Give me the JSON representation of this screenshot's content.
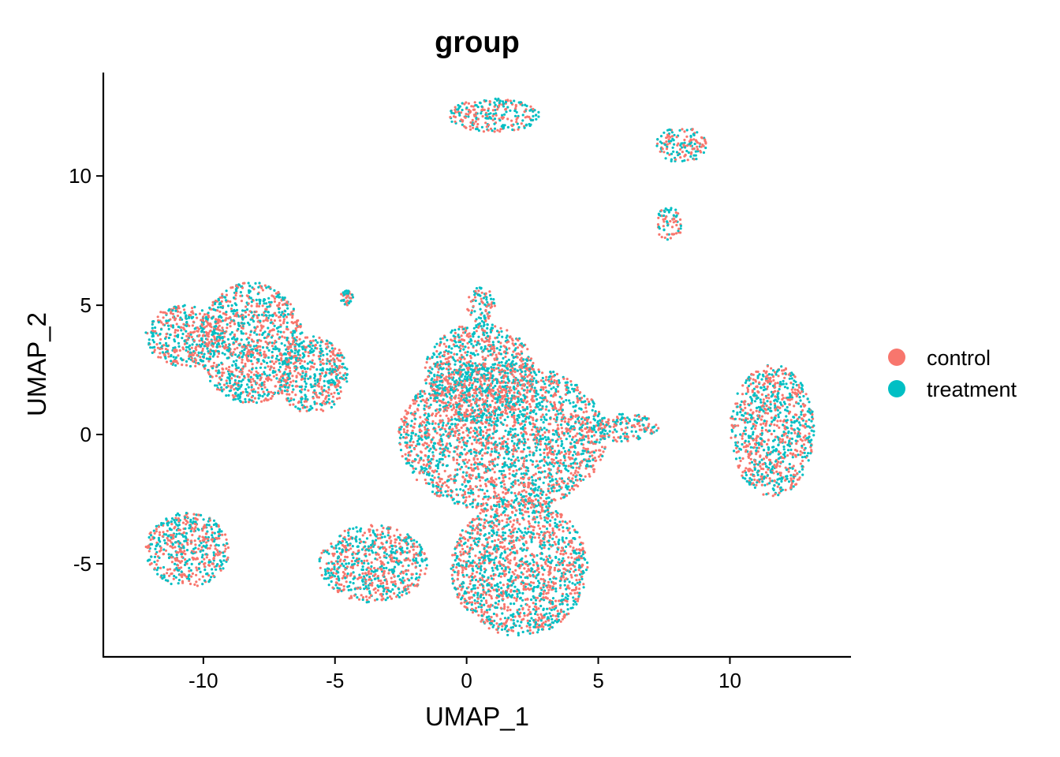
{
  "chart_data": {
    "type": "scatter",
    "title": "group",
    "xlabel": "UMAP_1",
    "ylabel": "UMAP_2",
    "xlim": [
      -13.8,
      14.6
    ],
    "ylim": [
      -8.6,
      14.0
    ],
    "x_ticks": [
      -10,
      -5,
      0,
      5,
      10
    ],
    "x_tick_labels": [
      "-10",
      "-5",
      "0",
      "5",
      "10"
    ],
    "y_ticks": [
      -5,
      0,
      5,
      10
    ],
    "y_tick_labels": [
      "-5",
      "0",
      "5",
      "10"
    ],
    "grid": false,
    "legend_position": "right",
    "series": [
      {
        "name": "control",
        "color": "#F8766D"
      },
      {
        "name": "treatment",
        "color": "#00BFC4"
      }
    ],
    "clusters": [
      {
        "x": [
          -12.2,
          -9.2
        ],
        "y": [
          2.6,
          5.0
        ]
      },
      {
        "x": [
          -10.2,
          -6.2
        ],
        "y": [
          1.2,
          5.9
        ]
      },
      {
        "x": [
          -7.2,
          -4.5
        ],
        "y": [
          0.8,
          3.8
        ]
      },
      {
        "x": [
          -12.2,
          -9.0
        ],
        "y": [
          -5.9,
          -3.0
        ]
      },
      {
        "x": [
          -4.8,
          -4.3
        ],
        "y": [
          5.0,
          5.6
        ]
      },
      {
        "x": [
          -0.7,
          2.8
        ],
        "y": [
          11.7,
          13.0
        ]
      },
      {
        "x": [
          7.2,
          9.1
        ],
        "y": [
          10.5,
          11.9
        ]
      },
      {
        "x": [
          7.2,
          8.2
        ],
        "y": [
          7.5,
          8.8
        ]
      },
      {
        "x": [
          0.0,
          1.1
        ],
        "y": [
          4.3,
          5.7
        ]
      },
      {
        "x": [
          -1.6,
          2.6
        ],
        "y": [
          0.5,
          4.3
        ]
      },
      {
        "x": [
          -2.6,
          5.3
        ],
        "y": [
          -3.0,
          2.8
        ]
      },
      {
        "x": [
          -0.6,
          4.6
        ],
        "y": [
          -7.8,
          -2.5
        ]
      },
      {
        "x": [
          -5.6,
          -1.5
        ],
        "y": [
          -6.5,
          -3.5
        ]
      },
      {
        "x": [
          4.8,
          7.3
        ],
        "y": [
          -0.3,
          0.8
        ]
      },
      {
        "x": [
          10.0,
          13.2
        ],
        "y": [
          -2.4,
          2.7
        ]
      }
    ]
  }
}
